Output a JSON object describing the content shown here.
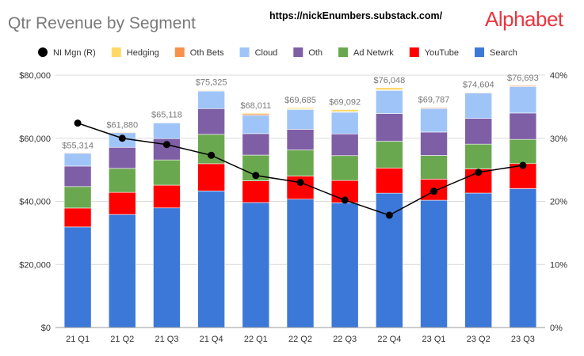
{
  "header": {
    "title": "Qtr Revenue by Segment",
    "url": "https://nickEnumbers.substack.com/",
    "brand": "Alphabet"
  },
  "chart_data": {
    "type": "bar",
    "stacked": true,
    "categories": [
      "21 Q1",
      "21 Q2",
      "21 Q3",
      "21 Q4",
      "22 Q1",
      "22 Q2",
      "22 Q3",
      "22 Q4",
      "23 Q1",
      "23 Q2",
      "23 Q3"
    ],
    "ylim": [
      0,
      80000
    ],
    "y_ticks": [
      "$0",
      "$20,000",
      "$40,000",
      "$60,000",
      "$80,000"
    ],
    "y_tick_values": [
      0,
      20000,
      40000,
      60000,
      80000
    ],
    "y2lim": [
      0,
      40
    ],
    "y2_ticks": [
      "0%",
      "10%",
      "20%",
      "30%",
      "40%"
    ],
    "y2_tick_values": [
      0,
      10,
      20,
      30,
      40
    ],
    "grid": true,
    "legend_position": "top",
    "legend_order": [
      "NI Mgn (R)",
      "Hedging",
      "Oth Bets",
      "Cloud",
      "Oth",
      "Ad Netwrk",
      "YouTube",
      "Search"
    ],
    "series": [
      {
        "name": "Search",
        "color": "#3c78d8",
        "values": [
          31879,
          35845,
          37926,
          43301,
          39618,
          40689,
          39539,
          42604,
          40359,
          42628,
          44026
        ]
      },
      {
        "name": "YouTube",
        "color": "#ff0000",
        "values": [
          6005,
          7002,
          7205,
          8633,
          6869,
          7340,
          7071,
          7963,
          6693,
          7665,
          7952
        ]
      },
      {
        "name": "Ad Netwrk",
        "color": "#6aa84f",
        "values": [
          6800,
          7597,
          7999,
          9305,
          8174,
          8259,
          7872,
          8475,
          7496,
          7850,
          7669
        ]
      },
      {
        "name": "Oth",
        "color": "#7e5fa6",
        "values": [
          6494,
          6673,
          6754,
          8161,
          6811,
          6553,
          6895,
          8796,
          7413,
          8142,
          8339
        ]
      },
      {
        "name": "Cloud",
        "color": "#9fc5f8",
        "values": [
          4047,
          4628,
          4990,
          5541,
          5821,
          6276,
          6868,
          7315,
          7454,
          8031,
          8411
        ]
      },
      {
        "name": "Oth Bets",
        "color": "#f6924a",
        "values": [
          198,
          192,
          182,
          181,
          440,
          193,
          209,
          226,
          288,
          285,
          297
        ]
      },
      {
        "name": "Hedging",
        "color": "#ffd966",
        "values": [
          -109,
          -57,
          62,
          203,
          278,
          375,
          638,
          669,
          84,
          3,
          -1
        ]
      }
    ],
    "totals": [
      55314,
      61880,
      65118,
      75325,
      68011,
      69685,
      69092,
      76048,
      69787,
      74604,
      76693
    ],
    "total_labels": [
      "$55,314",
      "$61,880",
      "$65,118",
      "$75,325",
      "$68,011",
      "$69,685",
      "$69,092",
      "$76,048",
      "$69,787",
      "$74,604",
      "$76,693"
    ],
    "line_series": {
      "name": "NI Mgn (R)",
      "axis": "right",
      "color": "#000000",
      "values": [
        32.4,
        30.0,
        29.0,
        27.3,
        24.1,
        23.0,
        20.2,
        17.8,
        21.6,
        24.6,
        25.7
      ]
    }
  }
}
